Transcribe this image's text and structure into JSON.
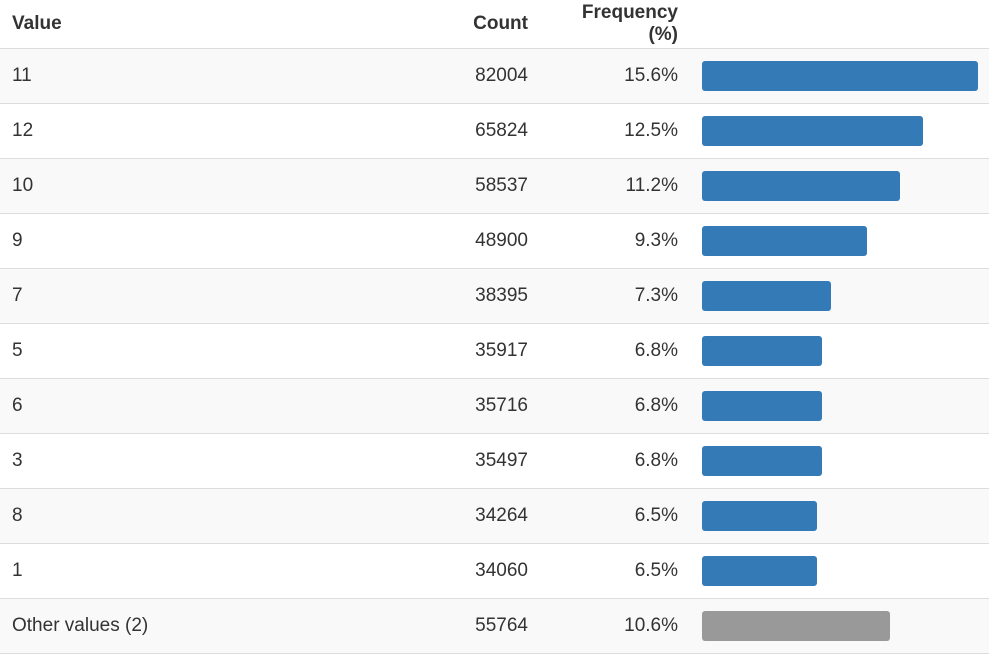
{
  "table": {
    "headers": {
      "value": "Value",
      "count": "Count",
      "frequency": "Frequency (%)"
    },
    "bar_color": "#337ab7",
    "other_bar_color": "#999999",
    "rows": [
      {
        "value": "11",
        "count": "82004",
        "frequency": "15.6%",
        "share": 15.6
      },
      {
        "value": "12",
        "count": "65824",
        "frequency": "12.5%",
        "share": 12.5
      },
      {
        "value": "10",
        "count": "58537",
        "frequency": "11.2%",
        "share": 11.2
      },
      {
        "value": "9",
        "count": "48900",
        "frequency": "9.3%",
        "share": 9.3
      },
      {
        "value": "7",
        "count": "38395",
        "frequency": "7.3%",
        "share": 7.3
      },
      {
        "value": "5",
        "count": "35917",
        "frequency": "6.8%",
        "share": 6.8
      },
      {
        "value": "6",
        "count": "35716",
        "frequency": "6.8%",
        "share": 6.8
      },
      {
        "value": "3",
        "count": "35497",
        "frequency": "6.8%",
        "share": 6.8
      },
      {
        "value": "8",
        "count": "34264",
        "frequency": "6.5%",
        "share": 6.5
      },
      {
        "value": "1",
        "count": "34060",
        "frequency": "6.5%",
        "share": 6.5
      }
    ],
    "other": {
      "value": "Other values (2)",
      "count": "55764",
      "frequency": "10.6%",
      "share": 10.6
    }
  }
}
